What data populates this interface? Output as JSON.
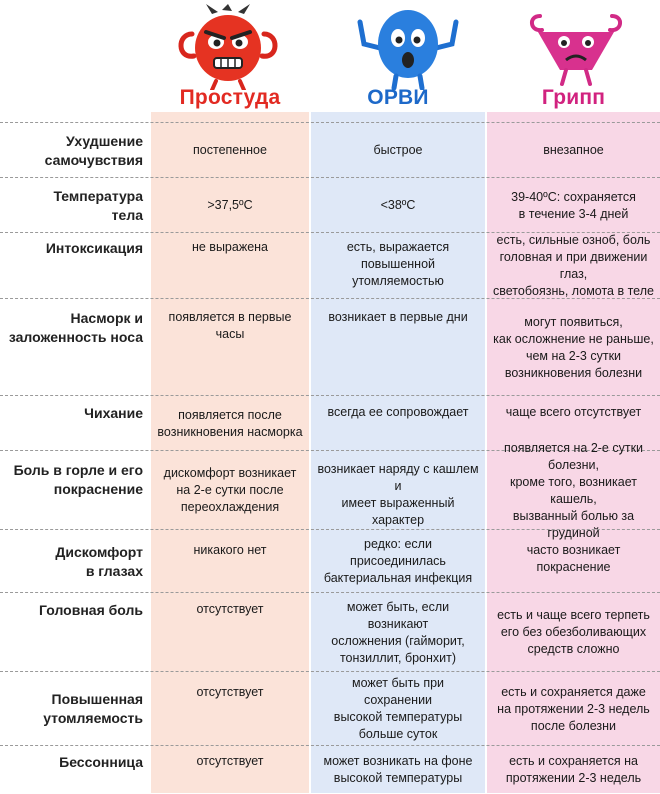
{
  "columns": [
    {
      "title": "Простуда",
      "color": "#e22a22",
      "mascot": "red-devil-mascot-icon"
    },
    {
      "title": "ОРВИ",
      "color": "#1d69c9",
      "mascot": "blue-germ-mascot-icon"
    },
    {
      "title": "Грипп",
      "color": "#d1227f",
      "mascot": "pink-virus-mascot-icon"
    }
  ],
  "rows": [
    {
      "label": "Ухудшение\nсамочувствия",
      "values": [
        "постепенное",
        "быстрое",
        "внезапное"
      ]
    },
    {
      "label": "Температура\nтела",
      "values": [
        ">37,5ºС",
        "<38ºС",
        "39-40ºС: сохраняется\nв течение 3-4 дней"
      ]
    },
    {
      "label": "Интоксикация",
      "values": [
        "не выражена",
        "есть, выражается повышенной\nутомляемостью",
        "есть, сильные озноб, боль\nголовная и при движении глаз,\nсветобоязнь, ломота в теле"
      ]
    },
    {
      "label": "Насморк и\nзаложенность носа",
      "values": [
        "появляется в первые часы",
        "возникает в первые дни",
        "могут появиться,\nкак осложнение не раньше,\nчем на 2-3 сутки\nвозникновения болезни"
      ]
    },
    {
      "label": "Чихание",
      "values": [
        "появляется после\nвозникновения насморка",
        "всегда ее сопровождает",
        "чаще всего отсутствует"
      ]
    },
    {
      "label": "Боль в горле и его\nпокраснение",
      "values": [
        "дискомфорт возникает\nна 2-е сутки после\nпереохлаждения",
        "возникает наряду с кашлем и\nимеет выраженный характер",
        "появляется на 2-е сутки болезни,\nкроме того, возникает кашель,\nвызванный болью за грудиной"
      ]
    },
    {
      "label": "Дискомфорт\nв глазах",
      "values": [
        "никакого нет",
        "редко: если присоединилась\nбактериальная инфекция",
        "часто возникает покраснение"
      ]
    },
    {
      "label": "Головная боль",
      "values": [
        "отсутствует",
        "может быть, если возникают\nосложнения (гайморит,\nтонзиллит, бронхит)",
        "есть и чаще всего терпеть\nего без обезболивающих\nсредств сложно"
      ]
    },
    {
      "label": "Повышенная\nутомляемость",
      "values": [
        "отсутствует",
        "может быть при сохранении\nвысокой температуры\nбольше суток",
        "есть и сохраняется даже\nна протяжении 2-3 недель\nпосле болезни"
      ]
    },
    {
      "label": "Бессонница",
      "values": [
        "отсутствует",
        "может возникать на фоне\nвысокой температуры",
        "есть и сохраняется на\nпротяжении 2-3 недель"
      ]
    }
  ]
}
